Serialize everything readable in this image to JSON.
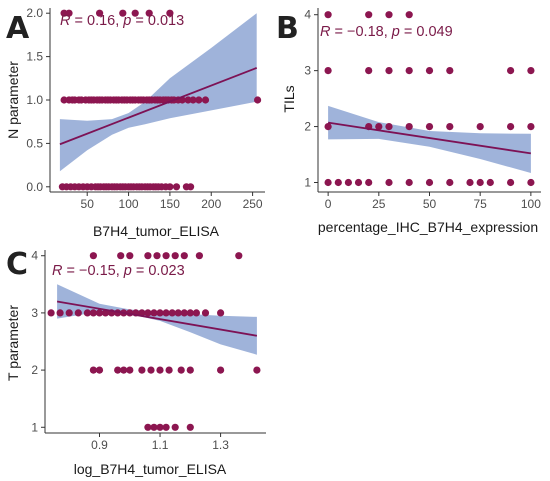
{
  "colors": {
    "point": "#8c1650",
    "line": "#7d1255",
    "band": "#8ea6d3",
    "stat_text": "#7a1a48"
  },
  "chart_data": [
    {
      "panel": "A",
      "type": "scatter",
      "title": "",
      "xlabel": "B7H4_tumor_ELISA",
      "ylabel": "N parameter",
      "xlim": [
        5,
        265
      ],
      "ylim": [
        -0.06,
        2.06
      ],
      "x_ticks": [
        50,
        100,
        150,
        200,
        250
      ],
      "x_tick_labels": [
        "50",
        "100",
        "150",
        "200",
        "250"
      ],
      "y_ticks": [
        0,
        0.5,
        1,
        1.5,
        2
      ],
      "y_tick_labels": [
        "0.0",
        "0.5",
        "1.0",
        "1.5",
        "2.0"
      ],
      "stat_R": "R",
      "stat_mid": " = 0.16, ",
      "stat_p": "p",
      "stat_end": " = 0.013",
      "points": [
        [
          22,
          2
        ],
        [
          28,
          2
        ],
        [
          65,
          2
        ],
        [
          93,
          2
        ],
        [
          108,
          2
        ],
        [
          125,
          2
        ],
        [
          150,
          2
        ],
        [
          22,
          1
        ],
        [
          28,
          1
        ],
        [
          32,
          1
        ],
        [
          35,
          1
        ],
        [
          40,
          1
        ],
        [
          43,
          1
        ],
        [
          48,
          1
        ],
        [
          52,
          1
        ],
        [
          55,
          1
        ],
        [
          58,
          1
        ],
        [
          62,
          1
        ],
        [
          65,
          1
        ],
        [
          68,
          1
        ],
        [
          72,
          1
        ],
        [
          75,
          1
        ],
        [
          78,
          1
        ],
        [
          82,
          1
        ],
        [
          85,
          1
        ],
        [
          88,
          1
        ],
        [
          92,
          1
        ],
        [
          95,
          1
        ],
        [
          98,
          1
        ],
        [
          102,
          1
        ],
        [
          105,
          1
        ],
        [
          108,
          1
        ],
        [
          112,
          1
        ],
        [
          115,
          1
        ],
        [
          118,
          1
        ],
        [
          122,
          1
        ],
        [
          125,
          1
        ],
        [
          128,
          1
        ],
        [
          132,
          1
        ],
        [
          135,
          1
        ],
        [
          138,
          1
        ],
        [
          142,
          1
        ],
        [
          145,
          1
        ],
        [
          148,
          1
        ],
        [
          152,
          1
        ],
        [
          155,
          1
        ],
        [
          160,
          1
        ],
        [
          165,
          1
        ],
        [
          172,
          1
        ],
        [
          178,
          1
        ],
        [
          185,
          1
        ],
        [
          193,
          1
        ],
        [
          256,
          1
        ],
        [
          20,
          0
        ],
        [
          25,
          0
        ],
        [
          30,
          0
        ],
        [
          35,
          0
        ],
        [
          40,
          0
        ],
        [
          45,
          0
        ],
        [
          50,
          0
        ],
        [
          55,
          0
        ],
        [
          60,
          0
        ],
        [
          63,
          0
        ],
        [
          66,
          0
        ],
        [
          70,
          0
        ],
        [
          73,
          0
        ],
        [
          76,
          0
        ],
        [
          80,
          0
        ],
        [
          83,
          0
        ],
        [
          86,
          0
        ],
        [
          90,
          0
        ],
        [
          93,
          0
        ],
        [
          96,
          0
        ],
        [
          100,
          0
        ],
        [
          103,
          0
        ],
        [
          106,
          0
        ],
        [
          110,
          0
        ],
        [
          113,
          0
        ],
        [
          116,
          0
        ],
        [
          120,
          0
        ],
        [
          123,
          0
        ],
        [
          126,
          0
        ],
        [
          130,
          0
        ],
        [
          133,
          0
        ],
        [
          136,
          0
        ],
        [
          140,
          0
        ],
        [
          145,
          0
        ],
        [
          150,
          0
        ],
        [
          158,
          0
        ],
        [
          170,
          0
        ],
        [
          175,
          0
        ]
      ],
      "fit_line": [
        [
          17,
          0.49
        ],
        [
          255,
          1.37
        ]
      ],
      "band_upper": [
        [
          17,
          0.78
        ],
        [
          50,
          0.76
        ],
        [
          80,
          0.78
        ],
        [
          100,
          0.85
        ],
        [
          120,
          0.98
        ],
        [
          150,
          1.25
        ],
        [
          200,
          1.6
        ],
        [
          255,
          2.0
        ]
      ],
      "band_lower": [
        [
          17,
          0.18
        ],
        [
          50,
          0.42
        ],
        [
          80,
          0.6
        ],
        [
          100,
          0.68
        ],
        [
          120,
          0.72
        ],
        [
          150,
          0.79
        ],
        [
          200,
          0.88
        ],
        [
          255,
          0.98
        ]
      ]
    },
    {
      "panel": "B",
      "type": "scatter",
      "title": "",
      "xlabel": "percentage_IHC_B7H4_expression",
      "ylabel": "TILs",
      "xlim": [
        -5,
        105
      ],
      "ylim": [
        0.83,
        4.12
      ],
      "x_ticks": [
        0,
        25,
        50,
        75,
        100
      ],
      "x_tick_labels": [
        "0",
        "25",
        "50",
        "75",
        "100"
      ],
      "y_ticks": [
        1,
        2,
        3,
        4
      ],
      "y_tick_labels": [
        "1",
        "2",
        "3",
        "4"
      ],
      "stat_R": "R",
      "stat_mid": " = −0.18, ",
      "stat_p": "p",
      "stat_end": " = 0.049",
      "points": [
        [
          0,
          4
        ],
        [
          20,
          4
        ],
        [
          30,
          4
        ],
        [
          40,
          4
        ],
        [
          0,
          3
        ],
        [
          20,
          3
        ],
        [
          30,
          3
        ],
        [
          40,
          3
        ],
        [
          50,
          3
        ],
        [
          60,
          3
        ],
        [
          90,
          3
        ],
        [
          100,
          3
        ],
        [
          0,
          2
        ],
        [
          20,
          2
        ],
        [
          25,
          2
        ],
        [
          30,
          2
        ],
        [
          40,
          2
        ],
        [
          50,
          2
        ],
        [
          60,
          2
        ],
        [
          75,
          2
        ],
        [
          90,
          2
        ],
        [
          100,
          2
        ],
        [
          0,
          1
        ],
        [
          5,
          1
        ],
        [
          10,
          1
        ],
        [
          15,
          1
        ],
        [
          20,
          1
        ],
        [
          30,
          1
        ],
        [
          40,
          1
        ],
        [
          50,
          1
        ],
        [
          60,
          1
        ],
        [
          70,
          1
        ],
        [
          75,
          1
        ],
        [
          80,
          1
        ],
        [
          90,
          1
        ],
        [
          100,
          1
        ]
      ],
      "fit_line": [
        [
          0,
          2.07
        ],
        [
          100,
          1.52
        ]
      ],
      "band_upper": [
        [
          0,
          2.37
        ],
        [
          25,
          2.08
        ],
        [
          50,
          1.92
        ],
        [
          75,
          1.88
        ],
        [
          100,
          1.87
        ]
      ],
      "band_lower": [
        [
          0,
          1.77
        ],
        [
          25,
          1.78
        ],
        [
          50,
          1.64
        ],
        [
          75,
          1.42
        ],
        [
          100,
          1.17
        ]
      ]
    },
    {
      "panel": "C",
      "type": "scatter",
      "title": "",
      "xlabel": "log_B7H4_tumor_ELISA",
      "ylabel": "T parameter",
      "xlim": [
        0.72,
        1.45
      ],
      "ylim": [
        0.9,
        4.1
      ],
      "x_ticks": [
        0.9,
        1.1,
        1.3
      ],
      "x_tick_labels": [
        "0.9",
        "1.1",
        "1.3"
      ],
      "y_ticks": [
        1,
        2,
        3,
        4
      ],
      "y_tick_labels": [
        "1",
        "2",
        "3",
        "4"
      ],
      "stat_R": "R",
      "stat_mid": " = −0.15, ",
      "stat_p": "p",
      "stat_end": " = 0.023",
      "points": [
        [
          0.88,
          4
        ],
        [
          0.97,
          4
        ],
        [
          1.0,
          4
        ],
        [
          1.06,
          4
        ],
        [
          1.09,
          4
        ],
        [
          1.12,
          4
        ],
        [
          1.15,
          4
        ],
        [
          1.18,
          4
        ],
        [
          1.23,
          4
        ],
        [
          1.36,
          4
        ],
        [
          0.74,
          3
        ],
        [
          0.77,
          3
        ],
        [
          0.8,
          3
        ],
        [
          0.83,
          3
        ],
        [
          0.86,
          3
        ],
        [
          0.88,
          3
        ],
        [
          0.9,
          3
        ],
        [
          0.92,
          3
        ],
        [
          0.94,
          3
        ],
        [
          0.96,
          3
        ],
        [
          0.98,
          3
        ],
        [
          1.0,
          3
        ],
        [
          1.02,
          3
        ],
        [
          1.04,
          3
        ],
        [
          1.06,
          3
        ],
        [
          1.08,
          3
        ],
        [
          1.1,
          3
        ],
        [
          1.12,
          3
        ],
        [
          1.14,
          3
        ],
        [
          1.16,
          3
        ],
        [
          1.18,
          3
        ],
        [
          1.2,
          3
        ],
        [
          1.22,
          3
        ],
        [
          1.25,
          3
        ],
        [
          1.3,
          3
        ],
        [
          0.88,
          2
        ],
        [
          0.9,
          2
        ],
        [
          0.96,
          2
        ],
        [
          0.98,
          2
        ],
        [
          1.0,
          2
        ],
        [
          1.04,
          2
        ],
        [
          1.07,
          2
        ],
        [
          1.1,
          2
        ],
        [
          1.13,
          2
        ],
        [
          1.17,
          2
        ],
        [
          1.2,
          2
        ],
        [
          1.3,
          2
        ],
        [
          1.42,
          2
        ],
        [
          1.06,
          1
        ],
        [
          1.08,
          1
        ],
        [
          1.1,
          1
        ],
        [
          1.12,
          1
        ],
        [
          1.15,
          1
        ],
        [
          1.2,
          1
        ]
      ],
      "fit_line": [
        [
          0.76,
          3.2
        ],
        [
          1.42,
          2.6
        ]
      ],
      "band_upper": [
        [
          0.76,
          3.5
        ],
        [
          0.9,
          3.16
        ],
        [
          1.0,
          3.06
        ],
        [
          1.1,
          3.02
        ],
        [
          1.2,
          2.98
        ],
        [
          1.3,
          2.95
        ],
        [
          1.42,
          2.93
        ]
      ],
      "band_lower": [
        [
          0.76,
          2.9
        ],
        [
          0.9,
          3.02
        ],
        [
          1.0,
          2.98
        ],
        [
          1.1,
          2.86
        ],
        [
          1.2,
          2.66
        ],
        [
          1.3,
          2.45
        ],
        [
          1.42,
          2.27
        ]
      ]
    }
  ]
}
